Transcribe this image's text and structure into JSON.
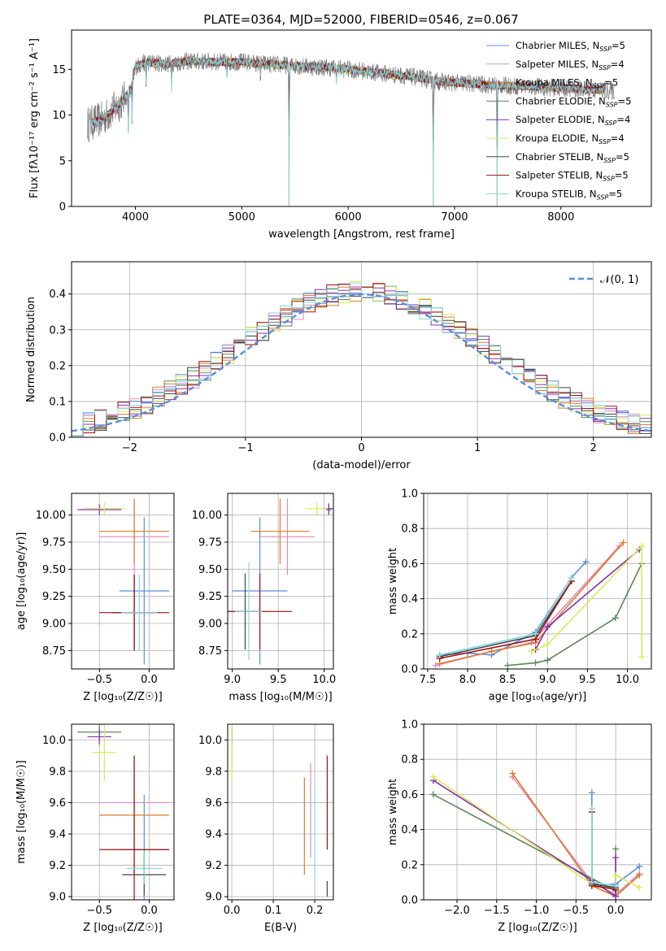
{
  "figure_title": "PLATE=0364, MJD=52000, FIBERID=0546, z=0.067",
  "colors": {
    "chabrier_miles": "#5b8ee0",
    "salpeter_miles": "#e08ac2",
    "kroupa_miles": "#e07b28",
    "chabrier_elodie": "#5a8a5a",
    "salpeter_elodie": "#8a2fb0",
    "kroupa_elodie": "#d6ec58",
    "chabrier_stelib": "#444444",
    "salpeter_stelib": "#a01010",
    "kroupa_stelib": "#86d8e0",
    "normal_curve": "#5b8ee0",
    "grid": "#b0b0b0"
  },
  "chart_data": [
    {
      "type": "line",
      "id": "spectrum",
      "xlabel": "wavelength [Angstrom, rest frame]",
      "ylabel": "Flux [fλ10⁻¹⁷ erg cm⁻² s⁻¹ A⁻¹]",
      "xlim": [
        3400,
        8850
      ],
      "ylim": [
        0,
        19.3
      ],
      "xticks": [
        4000,
        5000,
        6000,
        7000,
        8000
      ],
      "yticks": [
        0,
        5,
        10,
        15
      ],
      "grid": false,
      "legend_position": "top-right",
      "legend": [
        {
          "label": "Chabrier MILES, N",
          "sub": "SSP",
          "suffix": "=5",
          "color_key": "chabrier_miles"
        },
        {
          "label": "Salpeter MILES, N",
          "sub": "SSP",
          "suffix": "=4",
          "color_key": "salpeter_miles"
        },
        {
          "label": "Kroupa MILES, N",
          "sub": "SSP",
          "suffix": "=5",
          "color_key": "kroupa_miles"
        },
        {
          "label": "Chabrier ELODIE, N",
          "sub": "SSP",
          "suffix": "=5",
          "color_key": "chabrier_elodie"
        },
        {
          "label": "Salpeter ELODIE, N",
          "sub": "SSP",
          "suffix": "=4",
          "color_key": "salpeter_elodie"
        },
        {
          "label": "Kroupa ELODIE, N",
          "sub": "SSP",
          "suffix": "=4",
          "color_key": "kroupa_elodie"
        },
        {
          "label": "Chabrier STELIB, N",
          "sub": "SSP",
          "suffix": "=5",
          "color_key": "chabrier_stelib"
        },
        {
          "label": "Salpeter STELIB, N",
          "sub": "SSP",
          "suffix": "=5",
          "color_key": "salpeter_stelib"
        },
        {
          "label": "Kroupa STELIB, N",
          "sub": "SSP",
          "suffix": "=5",
          "color_key": "kroupa_stelib"
        }
      ],
      "continuum": {
        "x": [
          3550,
          3700,
          3850,
          3950,
          4000,
          4100,
          4300,
          4500,
          4800,
          5000,
          5200,
          5500,
          5800,
          6000,
          6300,
          6600,
          6900,
          7100,
          7300,
          7500,
          7800,
          8100,
          8400,
          8500
        ],
        "y": [
          9.0,
          9.6,
          11.2,
          12.5,
          15.3,
          15.8,
          15.6,
          15.9,
          15.8,
          15.8,
          15.6,
          15.4,
          15.2,
          15.0,
          14.6,
          14.2,
          13.6,
          13.5,
          13.3,
          13.2,
          13.1,
          12.9,
          12.7,
          12.6
        ]
      },
      "absorption_lines": [
        {
          "x": 3934,
          "depth": 6.0
        },
        {
          "x": 3969,
          "depth": 5.0
        },
        {
          "x": 4102,
          "depth": 3.5
        },
        {
          "x": 4340,
          "depth": 3.0
        },
        {
          "x": 4861,
          "depth": 2.5
        },
        {
          "x": 5175,
          "depth": 2.0
        },
        {
          "x": 5890,
          "depth": 2.0
        },
        {
          "x": 5444,
          "depth": 15.8
        },
        {
          "x": 6800,
          "depth": 13.8
        },
        {
          "x": 7400,
          "depth": 13.5
        },
        {
          "x": 8545,
          "depth": 3.0
        }
      ],
      "data_extent": [
        3550,
        8500
      ],
      "model_extent": [
        3580,
        8400
      ]
    },
    {
      "type": "bar",
      "id": "residuals",
      "xlabel": "(data-model)/error",
      "ylabel": "Normed distribution",
      "xlim": [
        -2.5,
        2.5
      ],
      "ylim": [
        0,
        0.49
      ],
      "xticks": [
        -2,
        -1,
        0,
        1,
        2
      ],
      "yticks": [
        0.0,
        0.1,
        0.2,
        0.3,
        0.4
      ],
      "grid": true,
      "legend_position": "top-right",
      "normal_label": "𝒩(0, 1)",
      "bin_width": 0.1
    },
    {
      "type": "scatter",
      "id": "age_vs_Z",
      "xlabel": "Z [log₁₀(Z/Z☉)]",
      "ylabel": "age  [log₁₀(age/yr)]",
      "xlim": [
        -0.78,
        0.25
      ],
      "ylim": [
        8.58,
        10.2
      ],
      "xticks": [
        -0.5,
        0.0
      ],
      "yticks": [
        8.75,
        9.0,
        9.25,
        9.5,
        9.75,
        10.0
      ],
      "grid": true,
      "points": [
        {
          "c": "chabrier_miles",
          "x": -0.05,
          "y": 9.3,
          "xe": 0.25,
          "ye": 0.68
        },
        {
          "c": "salpeter_miles",
          "x": -0.15,
          "y": 9.8,
          "xe": 0.35,
          "ye": 0.35
        },
        {
          "c": "kroupa_miles",
          "x": -0.15,
          "y": 9.85,
          "xe": 0.35,
          "ye": 0.3
        },
        {
          "c": "chabrier_elodie",
          "x": -0.15,
          "y": 9.1,
          "xe": 0.22,
          "ye": 0.35
        },
        {
          "c": "salpeter_elodie",
          "x": -0.5,
          "y": 10.05,
          "xe": 0.22,
          "ye": 0.05
        },
        {
          "c": "kroupa_elodie",
          "x": -0.45,
          "y": 10.06,
          "xe": 0.2,
          "ye": 0.06
        },
        {
          "c": "chabrier_stelib",
          "x": -0.15,
          "y": 9.1,
          "xe": 0.22,
          "ye": 0.35
        },
        {
          "c": "salpeter_stelib",
          "x": -0.15,
          "y": 9.1,
          "xe": 0.35,
          "ye": 0.35
        },
        {
          "c": "kroupa_stelib",
          "x": -0.1,
          "y": 9.1,
          "xe": 0.18,
          "ye": 0.35
        }
      ]
    },
    {
      "type": "scatter",
      "id": "age_vs_mass",
      "xlabel": "mass [log₁₀(M/M☉)]",
      "ylabel": "",
      "xlim": [
        8.95,
        10.1
      ],
      "ylim": [
        8.58,
        10.2
      ],
      "xticks": [
        9.0,
        9.5,
        10.0
      ],
      "yticks": [
        8.75,
        9.0,
        9.25,
        9.5,
        9.75,
        10.0
      ],
      "grid": true,
      "points": [
        {
          "c": "chabrier_miles",
          "x": 9.3,
          "y": 9.3,
          "xe": 0.3,
          "ye": 0.68
        },
        {
          "c": "salpeter_miles",
          "x": 9.6,
          "y": 9.8,
          "xe": 0.3,
          "ye": 0.35
        },
        {
          "c": "kroupa_miles",
          "x": 9.52,
          "y": 9.85,
          "xe": 0.32,
          "ye": 0.3
        },
        {
          "c": "chabrier_elodie",
          "x": 10.05,
          "y": 10.06,
          "xe": 0.05,
          "ye": 0.05
        },
        {
          "c": "salpeter_elodie",
          "x": 10.05,
          "y": 10.05,
          "xe": 0.03,
          "ye": 0.05
        },
        {
          "c": "kroupa_elodie",
          "x": 9.92,
          "y": 10.06,
          "xe": 0.12,
          "ye": 0.06
        },
        {
          "c": "chabrier_stelib",
          "x": 9.14,
          "y": 9.11,
          "xe": 0.22,
          "ye": 0.35
        },
        {
          "c": "salpeter_stelib",
          "x": 9.3,
          "y": 9.11,
          "xe": 0.35,
          "ye": 0.35
        },
        {
          "c": "kroupa_stelib",
          "x": 9.18,
          "y": 9.11,
          "xe": 0.15,
          "ye": 0.45
        }
      ]
    },
    {
      "type": "line",
      "id": "weight_vs_age",
      "xlabel": "age  [log₁₀(age/yr)]",
      "ylabel": "mass weight",
      "xlim": [
        7.45,
        10.3
      ],
      "ylim": [
        0.0,
        1.0
      ],
      "xticks": [
        7.5,
        8.0,
        8.5,
        9.0,
        9.5,
        10.0
      ],
      "yticks": [
        0.0,
        0.2,
        0.4,
        0.6,
        0.8,
        1.0
      ],
      "grid": true,
      "series": [
        {
          "c": "chabrier_miles",
          "x": [
            7.65,
            8.0,
            8.3,
            8.85,
            9.3,
            9.48
          ],
          "y": [
            0.08,
            0.09,
            0.08,
            0.21,
            0.52,
            0.61
          ]
        },
        {
          "c": "salpeter_miles",
          "x": [
            7.6,
            8.3,
            8.8,
            9.9
          ],
          "y": [
            0.02,
            0.1,
            0.15,
            0.7
          ]
        },
        {
          "c": "kroupa_miles",
          "x": [
            7.65,
            8.3,
            8.85,
            9.95
          ],
          "y": [
            0.03,
            0.1,
            0.15,
            0.72
          ]
        },
        {
          "c": "chabrier_elodie",
          "x": [
            8.5,
            8.85,
            9.0,
            9.85,
            10.18
          ],
          "y": [
            0.02,
            0.035,
            0.05,
            0.29,
            0.6
          ]
        },
        {
          "c": "salpeter_elodie",
          "x": [
            8.85,
            9.0,
            10.15
          ],
          "y": [
            0.11,
            0.24,
            0.68
          ]
        },
        {
          "c": "kroupa_elodie",
          "x": [
            8.8,
            9.0,
            10.18,
            10.18
          ],
          "y": [
            0.1,
            0.14,
            0.7,
            0.07
          ]
        },
        {
          "c": "chabrier_stelib",
          "x": [
            7.65,
            8.85,
            9.3
          ],
          "y": [
            0.07,
            0.19,
            0.5
          ]
        },
        {
          "c": "salpeter_stelib",
          "x": [
            7.65,
            8.85,
            9.3
          ],
          "y": [
            0.06,
            0.17,
            0.5
          ]
        },
        {
          "c": "kroupa_stelib",
          "x": [
            7.65,
            8.85,
            9.3
          ],
          "y": [
            0.08,
            0.2,
            0.52
          ]
        }
      ]
    },
    {
      "type": "scatter",
      "id": "mass_vs_Z",
      "xlabel": "Z [log₁₀(Z/Z☉)]",
      "ylabel": "mass [log₁₀(M/M☉)]",
      "xlim": [
        -0.78,
        0.25
      ],
      "ylim": [
        8.98,
        10.1
      ],
      "xticks": [
        -0.5,
        0.0
      ],
      "yticks": [
        9.0,
        9.2,
        9.4,
        9.6,
        9.8,
        10.0
      ],
      "grid": true,
      "points": [
        {
          "c": "chabrier_miles",
          "x": -0.05,
          "y": 9.3,
          "xe": 0.25,
          "ye": 0.35
        },
        {
          "c": "salpeter_miles",
          "x": -0.15,
          "y": 9.6,
          "xe": 0.35,
          "ye": 0.15
        },
        {
          "c": "kroupa_miles",
          "x": -0.15,
          "y": 9.52,
          "xe": 0.35,
          "ye": 0.38
        },
        {
          "c": "chabrier_elodie",
          "x": -0.5,
          "y": 10.05,
          "xe": 0.22,
          "ye": 0.05
        },
        {
          "c": "salpeter_elodie",
          "x": -0.5,
          "y": 10.02,
          "xe": 0.12,
          "ye": 0.05
        },
        {
          "c": "kroupa_elodie",
          "x": -0.45,
          "y": 9.92,
          "xe": 0.12,
          "ye": 0.18
        },
        {
          "c": "chabrier_stelib",
          "x": -0.05,
          "y": 9.14,
          "xe": 0.22,
          "ye": 0.13
        },
        {
          "c": "salpeter_stelib",
          "x": -0.15,
          "y": 9.3,
          "xe": 0.35,
          "ye": 0.6
        },
        {
          "c": "kroupa_stelib",
          "x": -0.05,
          "y": 9.18,
          "xe": 0.18,
          "ye": 0.1
        }
      ]
    },
    {
      "type": "scatter",
      "id": "mass_vs_ebv",
      "xlabel": "E(B-V)",
      "ylabel": "",
      "xlim": [
        -0.01,
        0.245
      ],
      "ylim": [
        8.98,
        10.1
      ],
      "xticks": [
        0.0,
        0.1,
        0.2
      ],
      "yticks": [
        9.0,
        9.2,
        9.4,
        9.6,
        9.8,
        10.0
      ],
      "grid": true,
      "points": [
        {
          "c": "chabrier_miles",
          "x": 0.0,
          "y": 9.92,
          "xe": 0.0,
          "ye": 0.12
        },
        {
          "c": "salpeter_miles",
          "x": 0.19,
          "y": 9.55,
          "xe": 0.0,
          "ye": 0.3
        },
        {
          "c": "kroupa_miles",
          "x": 0.175,
          "y": 9.45,
          "xe": 0.0,
          "ye": 0.31
        },
        {
          "c": "chabrier_elodie",
          "x": 0.0,
          "y": 10.05,
          "xe": 0.0,
          "ye": 0.05
        },
        {
          "c": "salpeter_elodie",
          "x": 0.0,
          "y": 10.02,
          "xe": 0.0,
          "ye": 0.05
        },
        {
          "c": "kroupa_elodie",
          "x": 0.0,
          "y": 9.92,
          "xe": 0.0,
          "ye": 0.18
        },
        {
          "c": "chabrier_stelib",
          "x": 0.23,
          "y": 9.05,
          "xe": 0.0,
          "ye": 0.05
        },
        {
          "c": "salpeter_stelib",
          "x": 0.23,
          "y": 9.6,
          "xe": 0.0,
          "ye": 0.3
        },
        {
          "c": "kroupa_stelib",
          "x": 0.2,
          "y": 9.4,
          "xe": 0.0,
          "ye": 0.3
        }
      ]
    },
    {
      "type": "line",
      "id": "weight_vs_Z",
      "xlabel": "Z [log₁₀(Z/Z☉)]",
      "ylabel": "mass weight",
      "xlim": [
        -2.42,
        0.45
      ],
      "ylim": [
        0.0,
        1.0
      ],
      "xticks": [
        -2.0,
        -1.5,
        -1.0,
        -0.5,
        0.0
      ],
      "yticks": [
        0.0,
        0.2,
        0.4,
        0.6,
        0.8,
        1.0
      ],
      "grid": true,
      "series": [
        {
          "c": "chabrier_miles",
          "x": [
            -0.3,
            -0.3,
            0.0,
            0.0,
            0.0,
            0.3
          ],
          "y": [
            0.61,
            0.08,
            0.09,
            0.05,
            0.09,
            0.19
          ]
        },
        {
          "c": "salpeter_miles",
          "x": [
            -1.3,
            -0.3,
            0.0,
            0.3
          ],
          "y": [
            0.7,
            0.1,
            0.03,
            0.15
          ]
        },
        {
          "c": "kroupa_miles",
          "x": [
            -1.3,
            -0.3,
            0.0,
            0.3
          ],
          "y": [
            0.72,
            0.08,
            0.02,
            0.14
          ]
        },
        {
          "c": "chabrier_elodie",
          "x": [
            -2.3,
            0.0,
            0.0
          ],
          "y": [
            0.6,
            0.05,
            0.29
          ]
        },
        {
          "c": "salpeter_elodie",
          "x": [
            -2.3,
            -0.3,
            0.0,
            0.0
          ],
          "y": [
            0.68,
            0.11,
            0.02,
            0.24
          ]
        },
        {
          "c": "kroupa_elodie",
          "x": [
            -2.3,
            -0.3,
            0.0,
            0.0,
            0.3
          ],
          "y": [
            0.7,
            0.09,
            0.07,
            0.14,
            0.07
          ]
        },
        {
          "c": "chabrier_stelib",
          "x": [
            -0.3,
            -0.3,
            0.0
          ],
          "y": [
            0.5,
            0.09,
            0.07
          ]
        },
        {
          "c": "salpeter_stelib",
          "x": [
            -0.3,
            -0.3,
            0.0
          ],
          "y": [
            0.5,
            0.08,
            0.06
          ]
        },
        {
          "c": "kroupa_stelib",
          "x": [
            -0.3,
            -0.3,
            0.0
          ],
          "y": [
            0.52,
            0.1,
            0.08
          ]
        }
      ]
    }
  ]
}
